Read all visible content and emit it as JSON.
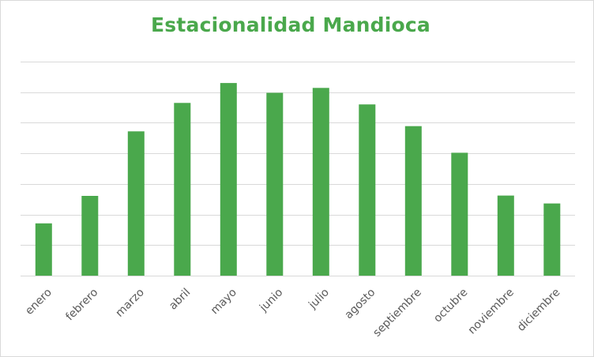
{
  "chart_data": {
    "type": "bar",
    "title": "Estacionalidad Mandioca",
    "categories": [
      "enero",
      "febrero",
      "marzo",
      "abril",
      "mayo",
      "junio",
      "julio",
      "agosto",
      "septiembre",
      "octubre",
      "noviembre",
      "diciembre"
    ],
    "values": [
      1.71,
      2.61,
      4.72,
      5.65,
      6.3,
      5.98,
      6.14,
      5.6,
      4.89,
      4.02,
      2.62,
      2.36
    ],
    "xlabel": "",
    "ylabel": "",
    "ylim": [
      0,
      7
    ],
    "grid": true,
    "legend": "none",
    "y_tick_labels_visible": false,
    "bar_color": "#4aa84c",
    "title_color": "#4aa84c",
    "gridline_color": "#d9d9d9"
  }
}
